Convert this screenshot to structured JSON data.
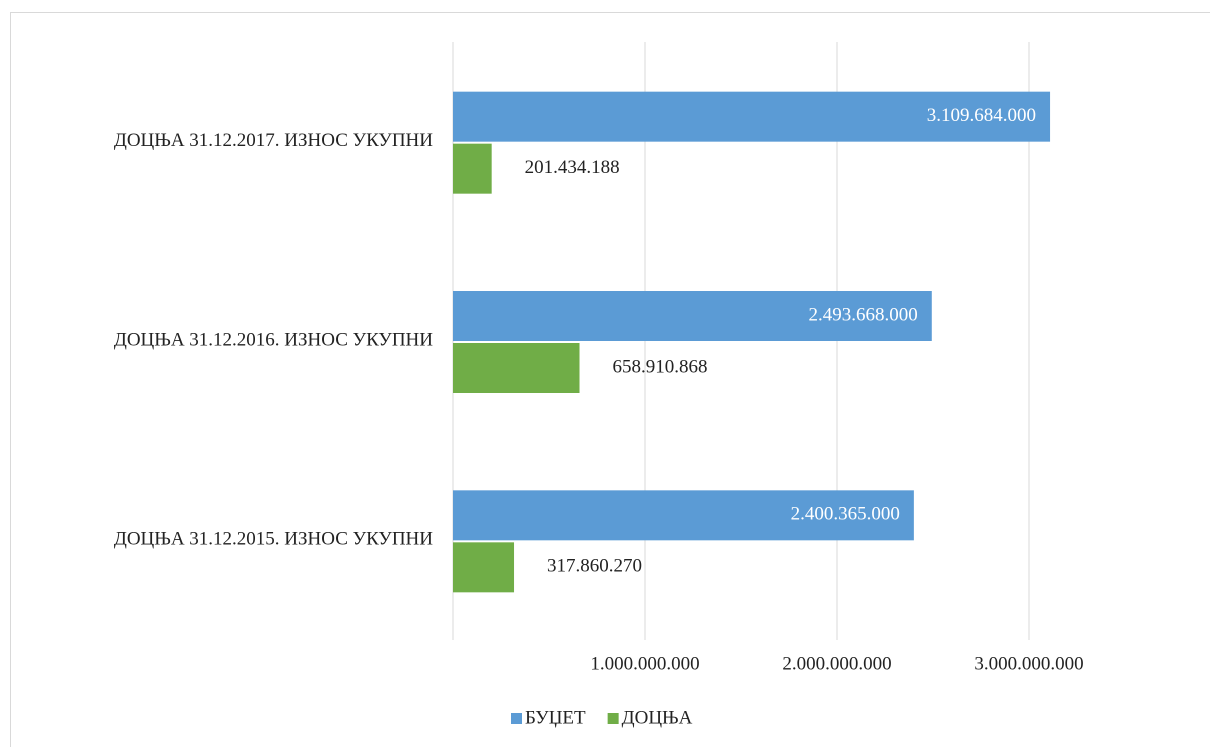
{
  "chart_data": {
    "type": "bar",
    "orientation": "horizontal",
    "categories": [
      "ДОЦЊА 31.12.2017. ИЗНОС УКУПНИ",
      "ДОЦЊА 31.12.2016. ИЗНОС УКУПНИ",
      "ДОЦЊА 31.12.2015. ИЗНОС УКУПНИ"
    ],
    "series": [
      {
        "name": "БУЏЕТ",
        "color": "#5b9bd5",
        "values": [
          3109684000,
          2493668000,
          2400365000
        ],
        "value_labels": [
          "3.109.684.000",
          "2.493.668.000",
          "2.400.365.000"
        ]
      },
      {
        "name": "ДОЦЊА",
        "color": "#70ad47",
        "values": [
          201434188,
          658910868,
          317860270
        ],
        "value_labels": [
          "201.434.188",
          "658.910.868",
          "317.860.270"
        ]
      }
    ],
    "xlim": [
      0,
      3500000000
    ],
    "xticks": [
      {
        "value": 1000000000,
        "label": "1.000.000.000"
      },
      {
        "value": 2000000000,
        "label": "2.000.000.000"
      },
      {
        "value": 3000000000,
        "label": "3.000.000.000"
      }
    ],
    "grid": true,
    "legend": "bottom"
  }
}
